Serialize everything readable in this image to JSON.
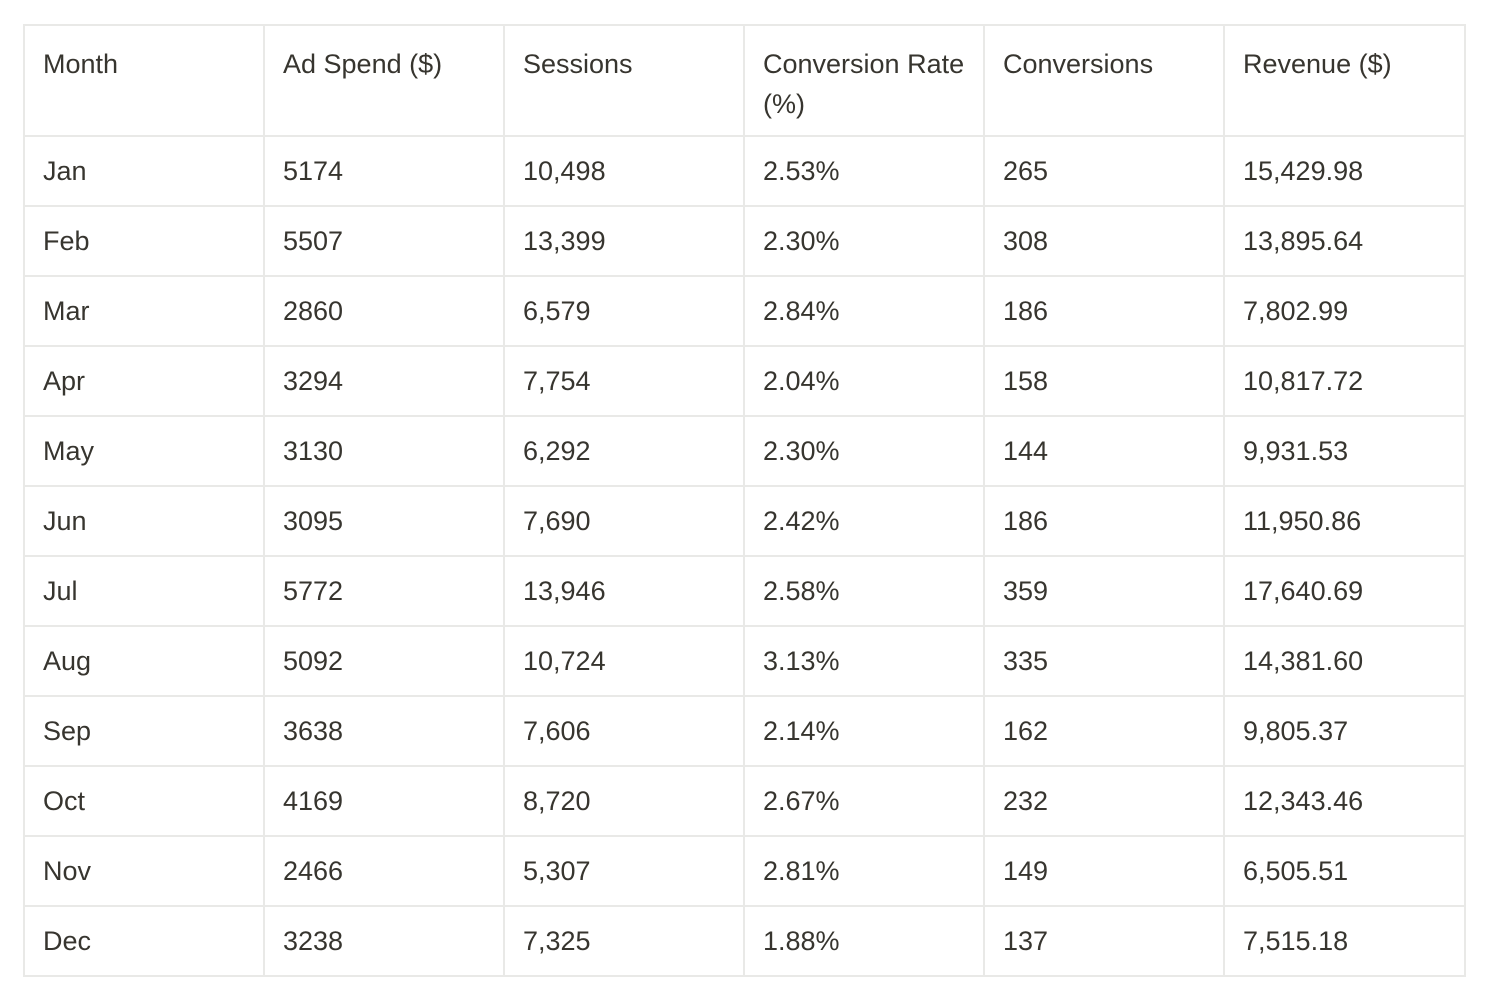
{
  "table": {
    "headers": [
      "Month",
      "Ad Spend ($)",
      "Sessions",
      "Conversion Rate (%)",
      "Conversions",
      "Revenue ($)"
    ],
    "rows": [
      [
        "Jan",
        "5174",
        "10,498",
        "2.53%",
        "265",
        "15,429.98"
      ],
      [
        "Feb",
        "5507",
        "13,399",
        "2.30%",
        "308",
        "13,895.64"
      ],
      [
        "Mar",
        "2860",
        "6,579",
        "2.84%",
        "186",
        "7,802.99"
      ],
      [
        "Apr",
        "3294",
        "7,754",
        "2.04%",
        "158",
        "10,817.72"
      ],
      [
        "May",
        "3130",
        "6,292",
        "2.30%",
        "144",
        "9,931.53"
      ],
      [
        "Jun",
        "3095",
        "7,690",
        "2.42%",
        "186",
        "11,950.86"
      ],
      [
        "Jul",
        "5772",
        "13,946",
        "2.58%",
        "359",
        "17,640.69"
      ],
      [
        "Aug",
        "5092",
        "10,724",
        "3.13%",
        "335",
        "14,381.60"
      ],
      [
        "Sep",
        "3638",
        "7,606",
        "2.14%",
        "162",
        "9,805.37"
      ],
      [
        "Oct",
        "4169",
        "8,720",
        "2.67%",
        "232",
        "12,343.46"
      ],
      [
        "Nov",
        "2466",
        "5,307",
        "2.81%",
        "149",
        "6,505.51"
      ],
      [
        "Dec",
        "3238",
        "7,325",
        "1.88%",
        "137",
        "7,515.18"
      ]
    ]
  },
  "colors": {
    "text": "#37352f",
    "border": "#e9e9e7",
    "background": "#ffffff"
  }
}
